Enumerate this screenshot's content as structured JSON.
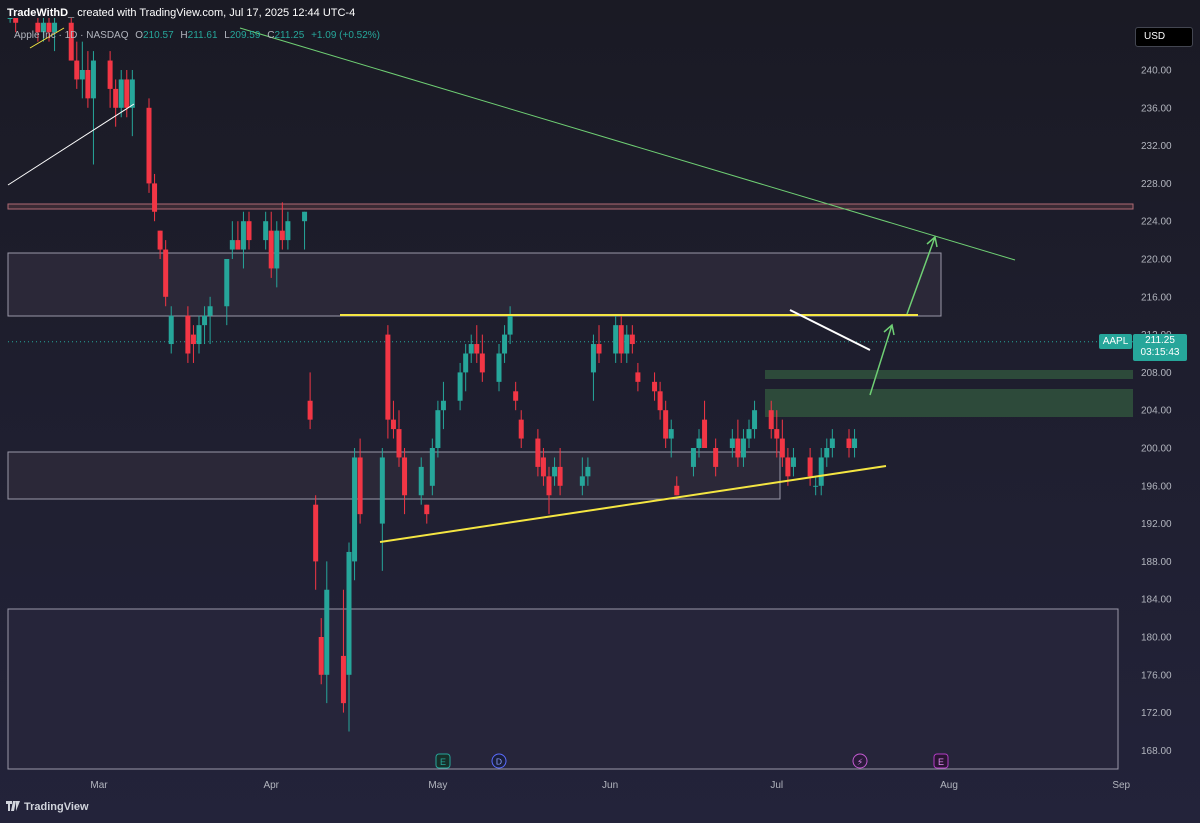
{
  "header": {
    "author": "TradeWithD_",
    "created_text": "created with TradingView.com, Jul 17, 2025 12:44 UTC-4"
  },
  "legend": {
    "symbol": "Apple Inc · 1D · NASDAQ",
    "o_label": "O",
    "o_value": "210.57",
    "h_label": "H",
    "h_value": "211.61",
    "l_label": "L",
    "l_value": "209.59",
    "c_label": "C",
    "c_value": "211.25",
    "change": "+1.09 (+0.52%)"
  },
  "currency": "USD",
  "price_label": {
    "ticker": "AAPL",
    "price": "211.25",
    "countdown": "03:15:43"
  },
  "footer": {
    "brand": "TradingView"
  },
  "colors": {
    "up": "#26a69a",
    "down": "#f23645",
    "background": "#1e1e29",
    "trendline_yellow": "#f5e642",
    "trendline_green": "#6fcf74",
    "zone_fill": "#2a2838",
    "zone_border": "#9a98a8",
    "demand_zone": "#2d4a3a"
  },
  "chart_data": {
    "type": "candlestick",
    "symbol": "AAPL",
    "timeframe": "1D",
    "ylim": [
      166,
      244
    ],
    "y_ticks": [
      "240.00",
      "236.00",
      "232.00",
      "228.00",
      "224.00",
      "220.00",
      "216.00",
      "212.00",
      "208.00",
      "204.00",
      "200.00",
      "196.00",
      "192.00",
      "188.00",
      "184.00",
      "180.00",
      "176.00",
      "172.00",
      "168.00"
    ],
    "x_ticks": [
      {
        "label": "Mar",
        "date": "2025-03-01"
      },
      {
        "label": "Apr",
        "date": "2025-04-01"
      },
      {
        "label": "May",
        "date": "2025-05-01"
      },
      {
        "label": "Jun",
        "date": "2025-06-01"
      },
      {
        "label": "Jul",
        "date": "2025-07-01"
      },
      {
        "label": "Aug",
        "date": "2025-08-01"
      },
      {
        "label": "Sep",
        "date": "2025-09-01"
      }
    ],
    "candles": [
      {
        "date": "2025-02-05",
        "o": 232,
        "h": 235,
        "l": 230,
        "c": 235
      },
      {
        "date": "2025-02-06",
        "o": 235,
        "h": 239,
        "l": 234,
        "c": 238
      },
      {
        "date": "2025-02-07",
        "o": 238,
        "h": 244,
        "l": 237,
        "c": 243
      },
      {
        "date": "2025-02-10",
        "o": 242,
        "h": 245,
        "l": 240,
        "c": 244
      },
      {
        "date": "2025-02-11",
        "o": 244,
        "h": 246,
        "l": 243,
        "c": 245
      },
      {
        "date": "2025-02-12",
        "o": 245,
        "h": 246,
        "l": 243,
        "c": 246
      },
      {
        "date": "2025-02-13",
        "o": 246,
        "h": 247,
        "l": 245,
        "c": 246
      },
      {
        "date": "2025-02-14",
        "o": 246,
        "h": 247,
        "l": 244,
        "c": 245
      },
      {
        "date": "2025-02-18",
        "o": 245,
        "h": 246,
        "l": 243,
        "c": 244
      },
      {
        "date": "2025-02-19",
        "o": 244,
        "h": 246,
        "l": 243,
        "c": 245
      },
      {
        "date": "2025-02-20",
        "o": 245,
        "h": 246,
        "l": 243,
        "c": 244
      },
      {
        "date": "2025-02-21",
        "o": 244,
        "h": 246,
        "l": 242,
        "c": 245
      },
      {
        "date": "2025-02-24",
        "o": 245,
        "h": 246,
        "l": 241,
        "c": 241
      },
      {
        "date": "2025-02-25",
        "o": 241,
        "h": 243,
        "l": 238,
        "c": 239
      },
      {
        "date": "2025-02-26",
        "o": 239,
        "h": 243,
        "l": 237,
        "c": 240
      },
      {
        "date": "2025-02-27",
        "o": 240,
        "h": 242,
        "l": 236,
        "c": 237
      },
      {
        "date": "2025-02-28",
        "o": 237,
        "h": 242,
        "l": 230,
        "c": 241
      },
      {
        "date": "2025-03-03",
        "o": 241,
        "h": 242,
        "l": 236,
        "c": 238
      },
      {
        "date": "2025-03-04",
        "o": 238,
        "h": 239,
        "l": 234,
        "c": 236
      },
      {
        "date": "2025-03-05",
        "o": 236,
        "h": 240,
        "l": 235,
        "c": 239
      },
      {
        "date": "2025-03-06",
        "o": 239,
        "h": 240,
        "l": 235,
        "c": 236
      },
      {
        "date": "2025-03-07",
        "o": 236,
        "h": 240,
        "l": 233,
        "c": 239
      },
      {
        "date": "2025-03-10",
        "o": 236,
        "h": 237,
        "l": 227,
        "c": 228
      },
      {
        "date": "2025-03-11",
        "o": 228,
        "h": 229,
        "l": 224,
        "c": 225
      },
      {
        "date": "2025-03-12",
        "o": 223,
        "h": 223,
        "l": 220,
        "c": 221
      },
      {
        "date": "2025-03-13",
        "o": 221,
        "h": 222,
        "l": 215,
        "c": 216
      },
      {
        "date": "2025-03-14",
        "o": 211,
        "h": 215,
        "l": 210,
        "c": 214
      },
      {
        "date": "2025-03-17",
        "o": 214,
        "h": 215,
        "l": 209,
        "c": 210
      },
      {
        "date": "2025-03-18",
        "o": 212,
        "h": 213,
        "l": 209,
        "c": 211
      },
      {
        "date": "2025-03-19",
        "o": 211,
        "h": 214,
        "l": 210,
        "c": 213
      },
      {
        "date": "2025-03-20",
        "o": 213,
        "h": 215,
        "l": 211,
        "c": 214
      },
      {
        "date": "2025-03-21",
        "o": 214,
        "h": 216,
        "l": 211,
        "c": 215
      },
      {
        "date": "2025-03-24",
        "o": 215,
        "h": 220,
        "l": 213,
        "c": 220
      },
      {
        "date": "2025-03-25",
        "o": 221,
        "h": 224,
        "l": 220,
        "c": 222
      },
      {
        "date": "2025-03-26",
        "o": 222,
        "h": 224,
        "l": 221,
        "c": 221
      },
      {
        "date": "2025-03-27",
        "o": 221,
        "h": 225,
        "l": 219,
        "c": 224
      },
      {
        "date": "2025-03-28",
        "o": 224,
        "h": 225,
        "l": 221,
        "c": 222
      },
      {
        "date": "2025-03-31",
        "o": 222,
        "h": 225,
        "l": 221,
        "c": 224
      },
      {
        "date": "2025-04-01",
        "o": 223,
        "h": 225,
        "l": 218,
        "c": 219
      },
      {
        "date": "2025-04-02",
        "o": 219,
        "h": 224,
        "l": 217,
        "c": 223
      },
      {
        "date": "2025-04-03",
        "o": 223,
        "h": 226,
        "l": 221,
        "c": 222
      },
      {
        "date": "2025-04-04",
        "o": 222,
        "h": 225,
        "l": 221,
        "c": 224
      },
      {
        "date": "2025-04-07",
        "o": 224,
        "h": 225,
        "l": 221,
        "c": 225
      },
      {
        "date": "2025-04-08",
        "o": 205,
        "h": 208,
        "l": 202,
        "c": 203
      },
      {
        "date": "2025-04-09",
        "o": 194,
        "h": 195,
        "l": 185,
        "c": 188
      },
      {
        "date": "2025-04-10",
        "o": 180,
        "h": 182,
        "l": 175,
        "c": 176
      },
      {
        "date": "2025-04-11",
        "o": 176,
        "h": 188,
        "l": 173,
        "c": 185
      },
      {
        "date": "2025-04-14",
        "o": 178,
        "h": 185,
        "l": 172,
        "c": 173
      },
      {
        "date": "2025-04-15",
        "o": 176,
        "h": 190,
        "l": 170,
        "c": 189
      },
      {
        "date": "2025-04-16",
        "o": 188,
        "h": 200,
        "l": 186,
        "c": 199
      },
      {
        "date": "2025-04-17",
        "o": 199,
        "h": 201,
        "l": 192,
        "c": 193
      },
      {
        "date": "2025-04-21",
        "o": 192,
        "h": 200,
        "l": 187,
        "c": 199
      },
      {
        "date": "2025-04-22",
        "o": 212,
        "h": 213,
        "l": 201,
        "c": 203
      },
      {
        "date": "2025-04-23",
        "o": 203,
        "h": 205,
        "l": 201,
        "c": 202
      },
      {
        "date": "2025-04-24",
        "o": 202,
        "h": 204,
        "l": 198,
        "c": 199
      },
      {
        "date": "2025-04-25",
        "o": 199,
        "h": 200,
        "l": 193,
        "c": 195
      },
      {
        "date": "2025-04-28",
        "o": 195,
        "h": 199,
        "l": 194,
        "c": 198
      },
      {
        "date": "2025-04-29",
        "o": 194,
        "h": 194,
        "l": 192,
        "c": 193
      },
      {
        "date": "2025-04-30",
        "o": 196,
        "h": 201,
        "l": 195,
        "c": 200
      },
      {
        "date": "2025-05-01",
        "o": 200,
        "h": 205,
        "l": 199,
        "c": 204
      },
      {
        "date": "2025-05-02",
        "o": 204,
        "h": 207,
        "l": 202,
        "c": 205
      },
      {
        "date": "2025-05-05",
        "o": 205,
        "h": 209,
        "l": 204,
        "c": 208
      },
      {
        "date": "2025-05-06",
        "o": 208,
        "h": 211,
        "l": 206,
        "c": 210
      },
      {
        "date": "2025-05-07",
        "o": 210,
        "h": 212,
        "l": 209,
        "c": 211
      },
      {
        "date": "2025-05-08",
        "o": 211,
        "h": 213,
        "l": 209,
        "c": 210
      },
      {
        "date": "2025-05-09",
        "o": 210,
        "h": 212,
        "l": 207,
        "c": 208
      },
      {
        "date": "2025-05-12",
        "o": 207,
        "h": 211,
        "l": 206,
        "c": 210
      },
      {
        "date": "2025-05-13",
        "o": 210,
        "h": 213,
        "l": 209,
        "c": 212
      },
      {
        "date": "2025-05-14",
        "o": 212,
        "h": 215,
        "l": 211,
        "c": 214
      },
      {
        "date": "2025-05-15",
        "o": 206,
        "h": 207,
        "l": 204,
        "c": 205
      },
      {
        "date": "2025-05-16",
        "o": 203,
        "h": 204,
        "l": 200,
        "c": 201
      },
      {
        "date": "2025-05-19",
        "o": 201,
        "h": 202,
        "l": 197,
        "c": 198
      },
      {
        "date": "2025-05-20",
        "o": 199,
        "h": 200,
        "l": 196,
        "c": 197
      },
      {
        "date": "2025-05-21",
        "o": 197,
        "h": 198,
        "l": 193,
        "c": 195
      },
      {
        "date": "2025-05-22",
        "o": 197,
        "h": 199,
        "l": 196,
        "c": 198
      },
      {
        "date": "2025-05-23",
        "o": 198,
        "h": 200,
        "l": 195,
        "c": 196
      },
      {
        "date": "2025-05-27",
        "o": 196,
        "h": 199,
        "l": 195,
        "c": 197
      },
      {
        "date": "2025-05-28",
        "o": 197,
        "h": 199,
        "l": 196,
        "c": 198
      },
      {
        "date": "2025-05-29",
        "o": 208,
        "h": 212,
        "l": 205,
        "c": 211
      },
      {
        "date": "2025-05-30",
        "o": 211,
        "h": 213,
        "l": 209,
        "c": 210
      },
      {
        "date": "2025-06-02",
        "o": 210,
        "h": 214,
        "l": 209,
        "c": 213
      },
      {
        "date": "2025-06-03",
        "o": 213,
        "h": 214,
        "l": 209,
        "c": 210
      },
      {
        "date": "2025-06-04",
        "o": 210,
        "h": 213,
        "l": 209,
        "c": 212
      },
      {
        "date": "2025-06-05",
        "o": 212,
        "h": 213,
        "l": 210,
        "c": 211
      },
      {
        "date": "2025-06-06",
        "o": 208,
        "h": 209,
        "l": 206,
        "c": 207
      },
      {
        "date": "2025-06-09",
        "o": 207,
        "h": 208,
        "l": 205,
        "c": 206
      },
      {
        "date": "2025-06-10",
        "o": 206,
        "h": 207,
        "l": 203,
        "c": 204
      },
      {
        "date": "2025-06-11",
        "o": 204,
        "h": 205,
        "l": 200,
        "c": 201
      },
      {
        "date": "2025-06-12",
        "o": 201,
        "h": 203,
        "l": 199,
        "c": 202
      },
      {
        "date": "2025-06-13",
        "o": 196,
        "h": 197,
        "l": 195,
        "c": 195
      },
      {
        "date": "2025-06-16",
        "o": 198,
        "h": 200,
        "l": 197,
        "c": 200
      },
      {
        "date": "2025-06-17",
        "o": 200,
        "h": 202,
        "l": 199,
        "c": 201
      },
      {
        "date": "2025-06-18",
        "o": 203,
        "h": 205,
        "l": 200,
        "c": 200
      },
      {
        "date": "2025-06-20",
        "o": 200,
        "h": 201,
        "l": 197,
        "c": 198
      },
      {
        "date": "2025-06-23",
        "o": 200,
        "h": 202,
        "l": 199,
        "c": 201
      },
      {
        "date": "2025-06-24",
        "o": 201,
        "h": 203,
        "l": 198,
        "c": 199
      },
      {
        "date": "2025-06-25",
        "o": 199,
        "h": 202,
        "l": 198,
        "c": 201
      },
      {
        "date": "2025-06-26",
        "o": 201,
        "h": 203,
        "l": 200,
        "c": 202
      },
      {
        "date": "2025-06-27",
        "o": 202,
        "h": 205,
        "l": 201,
        "c": 204
      },
      {
        "date": "2025-06-30",
        "o": 204,
        "h": 205,
        "l": 201,
        "c": 202
      },
      {
        "date": "2025-07-01",
        "o": 202,
        "h": 204,
        "l": 199,
        "c": 201
      },
      {
        "date": "2025-07-02",
        "o": 201,
        "h": 203,
        "l": 198,
        "c": 199
      },
      {
        "date": "2025-07-03",
        "o": 199,
        "h": 200,
        "l": 196,
        "c": 197
      },
      {
        "date": "2025-07-04",
        "o": 198,
        "h": 200,
        "l": 197,
        "c": 199
      },
      {
        "date": "2025-07-07",
        "o": 199,
        "h": 200,
        "l": 196,
        "c": 197
      },
      {
        "date": "2025-07-08",
        "o": 196,
        "h": 197,
        "l": 195,
        "c": 196
      },
      {
        "date": "2025-07-09",
        "o": 196,
        "h": 200,
        "l": 195,
        "c": 199
      },
      {
        "date": "2025-07-10",
        "o": 199,
        "h": 201,
        "l": 198,
        "c": 200
      },
      {
        "date": "2025-07-11",
        "o": 200,
        "h": 202,
        "l": 199,
        "c": 201
      },
      {
        "date": "2025-07-14",
        "o": 201,
        "h": 202,
        "l": 199,
        "c": 200
      },
      {
        "date": "2025-07-15",
        "o": 200,
        "h": 202,
        "l": 199,
        "c": 201
      }
    ]
  }
}
